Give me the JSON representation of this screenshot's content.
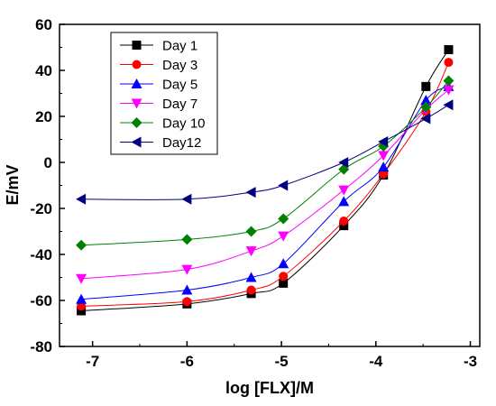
{
  "chart_data": {
    "type": "line",
    "xlabel": "log [FLX]/M",
    "ylabel": "E/mV",
    "xlim": [
      -7.35,
      -2.9
    ],
    "ylim": [
      -80,
      60
    ],
    "x_ticks": [
      -7,
      -6,
      -5,
      -4,
      -3
    ],
    "y_ticks": [
      -80,
      -60,
      -40,
      -20,
      0,
      20,
      40,
      60
    ],
    "x_tick_labels": [
      "-7",
      "-6",
      "-5",
      "-4",
      "-3"
    ],
    "y_tick_labels": [
      "-80",
      "-60",
      "-40",
      "-20",
      "0",
      "20",
      "40",
      "60"
    ],
    "x": [
      -7.12,
      -6.0,
      -5.32,
      -4.98,
      -4.34,
      -3.92,
      -3.47,
      -3.23
    ],
    "grid": false,
    "legend_position": "top-left",
    "series": [
      {
        "name": "Day 1",
        "color": "#000000",
        "marker": "square",
        "values": [
          -64.5,
          -61.5,
          -57,
          -52.5,
          -27.5,
          -5.5,
          33,
          49
        ]
      },
      {
        "name": "Day 3",
        "color": "#ff0000",
        "marker": "circle",
        "values": [
          -62.5,
          -60.5,
          -55.5,
          -49.5,
          -25.5,
          -5,
          22,
          43.5
        ]
      },
      {
        "name": "Day 5",
        "color": "#0000ff",
        "marker": "triangle-up",
        "values": [
          -59.5,
          -55.5,
          -50,
          -44,
          -17,
          -2,
          27,
          33
        ]
      },
      {
        "name": "Day 7",
        "color": "#ff00ff",
        "marker": "triangle-down",
        "values": [
          -50.5,
          -46.5,
          -38.5,
          -32,
          -12,
          3,
          23,
          31.5
        ]
      },
      {
        "name": "Day 10",
        "color": "#008000",
        "marker": "diamond",
        "values": [
          -36,
          -33.5,
          -30,
          -24.5,
          -3,
          7,
          24,
          35.5
        ]
      },
      {
        "name": "Day12",
        "color": "#000080",
        "marker": "triangle-left",
        "values": [
          -16,
          -16,
          -13,
          -10,
          0,
          9,
          19,
          25
        ]
      }
    ]
  }
}
